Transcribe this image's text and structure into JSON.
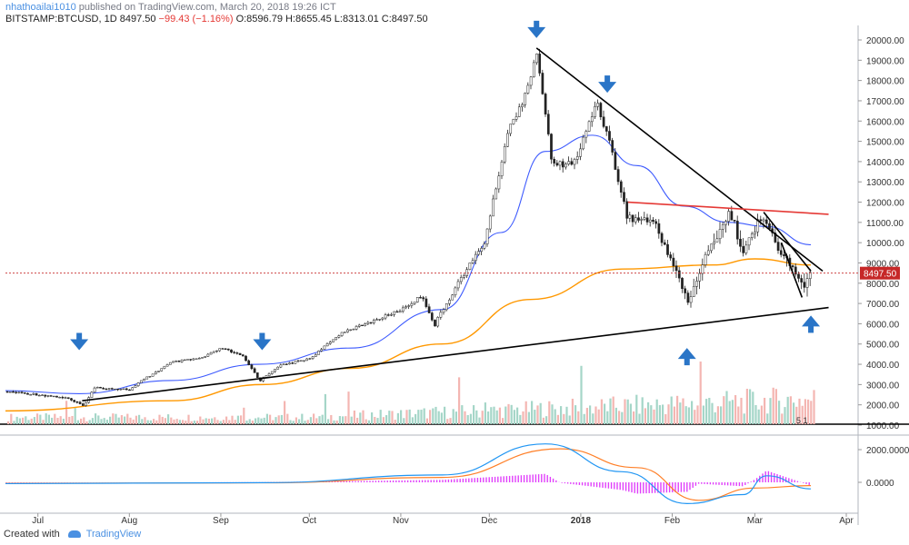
{
  "header": {
    "author": "nhathoailai1010",
    "published": "published on TradingView.com, March 20, 2018 19:26 ICT",
    "symbol": "BITSTAMP:BTCUSD, 1D",
    "last": "8497.50",
    "change": "−99.43 (−1.16%)",
    "ohlc": "O:8596.79 H:8655.45 L:8313.01 C:8497.50"
  },
  "footer": {
    "created_with": "Created with",
    "brand": "TradingView"
  },
  "chart_data": {
    "type": "line",
    "title": "BITSTAMP:BTCUSD, 1D",
    "xlabel": "",
    "ylabel": "",
    "x_ticks": [
      "Jul",
      "Aug",
      "Sep",
      "Oct",
      "Nov",
      "Dec",
      "2018",
      "Feb",
      "Mar",
      "Apr"
    ],
    "y_ticks": [
      "1000.00",
      "2000.00",
      "3000.00",
      "4000.00",
      "5000.00",
      "6000.00",
      "7000.00",
      "8000.00",
      "9000.00",
      "10000.00",
      "11000.00",
      "12000.00",
      "13000.00",
      "14000.00",
      "15000.00",
      "16000.00",
      "17000.00",
      "18000.00",
      "19000.00",
      "20000.00"
    ],
    "ylim": [
      1000,
      20000
    ],
    "last_price_label": "8497.50",
    "last_price": 8497.5,
    "volume_marker": "5 1",
    "macd_ticks": [
      "2000.0000",
      "0.0000"
    ],
    "price_path": [
      [
        "2017-06-20",
        2650
      ],
      [
        "2017-07-01",
        2500
      ],
      [
        "2017-07-10",
        2350
      ],
      [
        "2017-07-16",
        1950
      ],
      [
        "2017-07-20",
        2850
      ],
      [
        "2017-08-01",
        2750
      ],
      [
        "2017-08-05",
        3200
      ],
      [
        "2017-08-15",
        4100
      ],
      [
        "2017-08-25",
        4300
      ],
      [
        "2017-09-01",
        4800
      ],
      [
        "2017-09-08",
        4400
      ],
      [
        "2017-09-14",
        3200
      ],
      [
        "2017-09-20",
        3900
      ],
      [
        "2017-10-01",
        4300
      ],
      [
        "2017-10-12",
        5600
      ],
      [
        "2017-10-20",
        6000
      ],
      [
        "2017-11-01",
        6700
      ],
      [
        "2017-11-08",
        7400
      ],
      [
        "2017-11-12",
        5900
      ],
      [
        "2017-11-20",
        8000
      ],
      [
        "2017-11-29",
        10000
      ],
      [
        "2017-12-07",
        15500
      ],
      [
        "2017-12-12",
        17000
      ],
      [
        "2017-12-17",
        19300
      ],
      [
        "2017-12-22",
        13800
      ],
      [
        "2017-12-30",
        14000
      ],
      [
        "2018-01-06",
        17000
      ],
      [
        "2018-01-10",
        15200
      ],
      [
        "2018-01-16",
        11500
      ],
      [
        "2018-01-17",
        11200
      ],
      [
        "2018-01-25",
        11100
      ],
      [
        "2018-02-01",
        9000
      ],
      [
        "2018-02-06",
        7000
      ],
      [
        "2018-02-10",
        8600
      ],
      [
        "2018-02-15",
        10200
      ],
      [
        "2018-02-20",
        11500
      ],
      [
        "2018-02-25",
        9600
      ],
      [
        "2018-03-04",
        11500
      ],
      [
        "2018-03-07",
        10000
      ],
      [
        "2018-03-12",
        9000
      ],
      [
        "2018-03-17",
        7900
      ],
      [
        "2018-03-20",
        8497.5
      ]
    ],
    "ma_fast": [
      [
        "2017-06-20",
        2700
      ],
      [
        "2017-07-15",
        2550
      ],
      [
        "2017-08-15",
        3200
      ],
      [
        "2017-09-14",
        4000
      ],
      [
        "2017-10-15",
        4800
      ],
      [
        "2017-11-15",
        6700
      ],
      [
        "2017-12-05",
        10500
      ],
      [
        "2017-12-20",
        14500
      ],
      [
        "2018-01-05",
        15300
      ],
      [
        "2018-01-20",
        13800
      ],
      [
        "2018-02-05",
        11800
      ],
      [
        "2018-02-20",
        11000
      ],
      [
        "2018-03-05",
        10800
      ],
      [
        "2018-03-20",
        9900
      ]
    ],
    "ma_slow": [
      [
        "2017-06-20",
        1700
      ],
      [
        "2017-08-15",
        2200
      ],
      [
        "2017-09-15",
        3000
      ],
      [
        "2017-10-15",
        3800
      ],
      [
        "2017-11-15",
        5000
      ],
      [
        "2017-12-15",
        7200
      ],
      [
        "2018-01-15",
        8700
      ],
      [
        "2018-02-15",
        8900
      ],
      [
        "2018-03-01",
        9200
      ],
      [
        "2018-03-20",
        8900
      ]
    ],
    "trendlines": [
      {
        "color": "#000000",
        "points": [
          [
            "2017-12-17",
            19600
          ],
          [
            "2018-03-24",
            8600
          ]
        ]
      },
      {
        "color": "#000000",
        "points": [
          [
            "2017-07-16",
            2200
          ],
          [
            "2018-03-26",
            6800
          ]
        ]
      },
      {
        "color": "#e53935",
        "points": [
          [
            "2018-01-17",
            12000
          ],
          [
            "2018-03-26",
            11400
          ]
        ]
      },
      {
        "color": "#000000",
        "points": [
          [
            "2018-03-04",
            11500
          ],
          [
            "2018-03-20",
            8600
          ]
        ]
      },
      {
        "color": "#000000",
        "points": [
          [
            "2018-03-10",
            10000
          ],
          [
            "2018-03-17",
            7300
          ]
        ]
      }
    ],
    "arrows": [
      {
        "direction": "down",
        "x": "2017-07-15",
        "price": 5100
      },
      {
        "direction": "down",
        "x": "2017-09-15",
        "price": 5100
      },
      {
        "direction": "down",
        "x": "2017-12-17",
        "price": 20500
      },
      {
        "direction": "down",
        "x": "2018-01-10",
        "price": 17800
      },
      {
        "direction": "up",
        "x": "2018-02-06",
        "price": 4400
      },
      {
        "direction": "up",
        "x": "2018-03-20",
        "price": 6000
      }
    ],
    "volume_bars_desc": "red and green volume histogram along bottom of price pane",
    "macd": {
      "macd_line": [
        [
          "2017-06-20",
          -80
        ],
        [
          "2017-09-15",
          -20
        ],
        [
          "2017-11-15",
          450
        ],
        [
          "2017-12-20",
          2350
        ],
        [
          "2018-01-15",
          650
        ],
        [
          "2018-02-06",
          -1300
        ],
        [
          "2018-02-25",
          -750
        ],
        [
          "2018-03-05",
          400
        ],
        [
          "2018-03-20",
          -400
        ]
      ],
      "signal_line": [
        [
          "2017-06-20",
          -60
        ],
        [
          "2017-09-15",
          -30
        ],
        [
          "2017-11-15",
          300
        ],
        [
          "2017-12-25",
          2050
        ],
        [
          "2018-01-20",
          900
        ],
        [
          "2018-02-10",
          -1100
        ],
        [
          "2018-03-01",
          -350
        ],
        [
          "2018-03-20",
          -200
        ]
      ]
    }
  },
  "colors": {
    "up": "#26a69a",
    "down": "#ef5350",
    "ma_fast": "#3d5afe",
    "ma_slow": "#ff9800",
    "macd": "#2196f3",
    "signal": "#ff7f27",
    "hist": "#e040fb",
    "arrow": "#2a75c7",
    "price_label": "#c62828",
    "trend_red": "#e53935"
  }
}
